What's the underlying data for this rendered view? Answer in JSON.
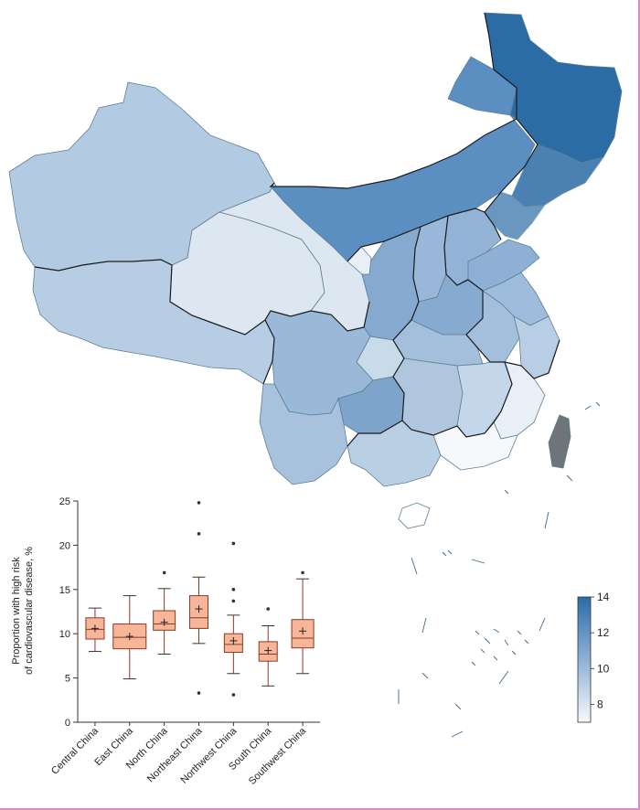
{
  "map": {
    "region_colors": {
      "Northeast China": "#2b6ca5",
      "Inner Mongolia": "#5b8fc2",
      "Xinjiang": "#b2cbe2",
      "Tibet": "#b6cde3",
      "Qinghai": "#dde7f1",
      "Gansu": "#dde7f1",
      "Ningxia": "#e8eff6",
      "Shaanxi": "#86a9cf",
      "Shanxi": "#99b7d8",
      "Hebei": "#93b3d6",
      "Shandong": "#8eb0d4",
      "Henan": "#86aad0",
      "Sichuan": "#9ab8d7",
      "Chongqing": "#c9dae9",
      "Guizhou": "#7fa4cb",
      "Yunnan": "#a8c1dc",
      "Guangxi": "#b9cfe4",
      "Guangdong": "#f6f8fb",
      "Hunan": "#afc6de",
      "Hubei": "#a4bfdc",
      "Jiangxi": "#c4d6e9",
      "Fujian": "#e9eff6",
      "Zhejiang": "#b8cee4",
      "Anhui": "#a4bfdc",
      "Jiangsu": "#9ebcdb",
      "Taiwan": "#6e7478",
      "Hainan": "#ffffff"
    },
    "colorbar": {
      "min": 7,
      "max": 14,
      "ticks": [
        "8",
        "10",
        "12",
        "14"
      ],
      "colors": [
        "#f7f9fc",
        "#c3d5e9",
        "#8fb0d5",
        "#5d8fc1",
        "#2b6ca5"
      ]
    }
  },
  "chart_data": {
    "type": "box",
    "title": "",
    "xlabel": "",
    "ylabel": "Proportion with high risk of cardiovascular disease, %",
    "ylabel_lines": [
      "Proportion with high risk",
      "of cardiovascular disease, %"
    ],
    "ylim": [
      0,
      25
    ],
    "yticks": [
      "0",
      "5",
      "10",
      "15",
      "20",
      "25"
    ],
    "categories": [
      "Central China",
      "East China",
      "North China",
      "Northeast China",
      "Northwest China",
      "South China",
      "Southwest China"
    ],
    "box_color": "#f7b699",
    "box_edge": "#8b3a20",
    "series": [
      {
        "category": "Central China",
        "min": 8.0,
        "q1": 9.4,
        "median": 10.5,
        "q3": 11.8,
        "max": 12.9,
        "mean": 10.6,
        "outliers": []
      },
      {
        "category": "East China",
        "min": 4.9,
        "q1": 8.3,
        "median": 9.6,
        "q3": 11.1,
        "max": 14.3,
        "mean": 9.7,
        "outliers": []
      },
      {
        "category": "North China",
        "min": 7.7,
        "q1": 10.4,
        "median": 11.1,
        "q3": 12.6,
        "max": 15.1,
        "mean": 11.3,
        "outliers": [
          16.9
        ]
      },
      {
        "category": "Northeast China",
        "min": 8.9,
        "q1": 10.6,
        "median": 11.8,
        "q3": 14.3,
        "max": 16.4,
        "mean": 12.8,
        "outliers": [
          3.3,
          21.3,
          24.8
        ]
      },
      {
        "category": "Northwest China",
        "min": 5.5,
        "q1": 7.9,
        "median": 8.8,
        "q3": 10.0,
        "max": 12.1,
        "mean": 9.2,
        "outliers": [
          3.1,
          13.7,
          15.0,
          20.2
        ]
      },
      {
        "category": "South China",
        "min": 4.1,
        "q1": 6.9,
        "median": 7.7,
        "q3": 9.1,
        "max": 10.9,
        "mean": 8.1,
        "outliers": [
          12.8
        ]
      },
      {
        "category": "Southwest China",
        "min": 5.5,
        "q1": 8.4,
        "median": 9.5,
        "q3": 11.6,
        "max": 16.2,
        "mean": 10.3,
        "outliers": [
          16.9
        ]
      }
    ]
  }
}
